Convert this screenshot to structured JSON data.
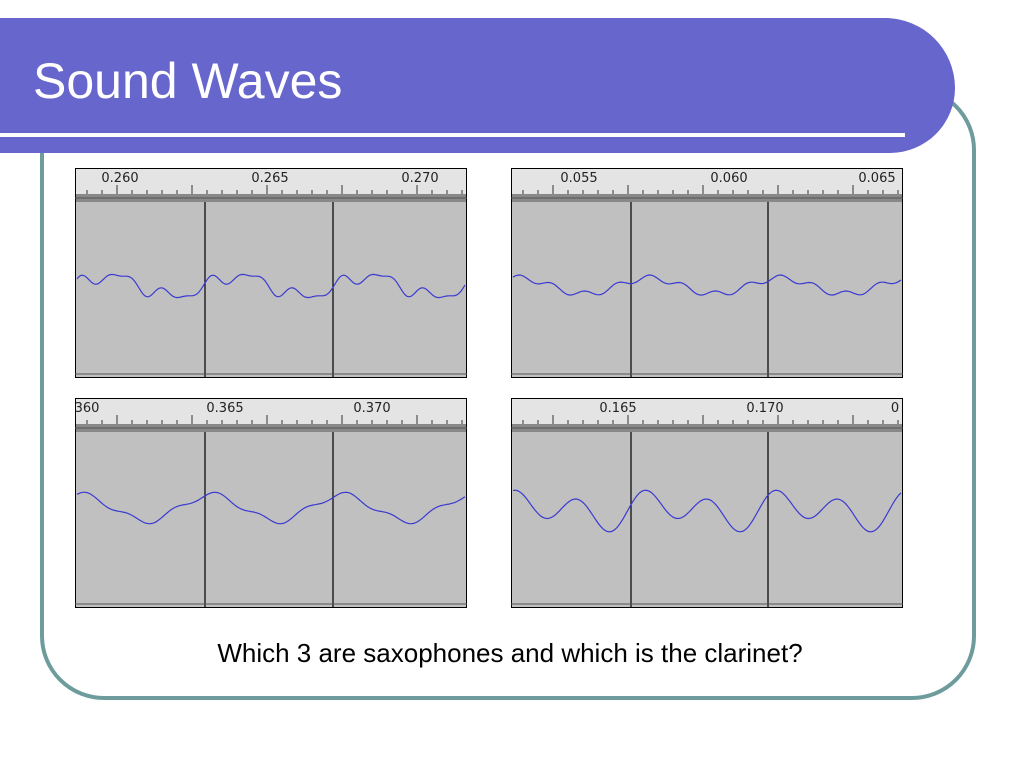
{
  "header": {
    "title": "Sound Waves"
  },
  "panels": [
    {
      "ticks": [
        "0.260",
        "0.265",
        "0.270"
      ]
    },
    {
      "ticks": [
        "0.055",
        "0.060",
        "0.065"
      ]
    },
    {
      "ticks": [
        "360",
        "0.365",
        "0.370"
      ]
    },
    {
      "ticks": [
        "0.165",
        "0.170",
        "0"
      ]
    }
  ],
  "caption": "Which 3 are saxophones and which is the clarinet?"
}
